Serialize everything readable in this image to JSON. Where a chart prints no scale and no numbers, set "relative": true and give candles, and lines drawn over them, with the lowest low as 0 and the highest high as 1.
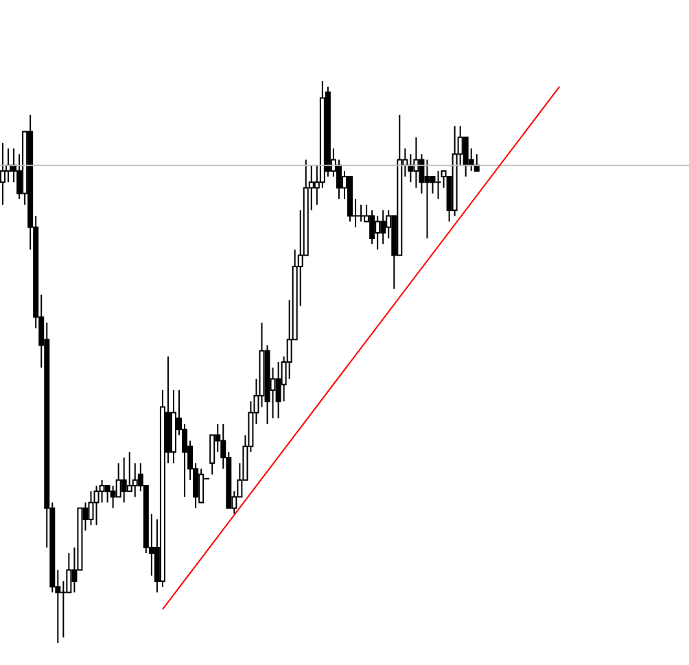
{
  "chart_data": {
    "type": "candlestick",
    "relative": true,
    "tick_labels": false,
    "categories": [
      null,
      null,
      null,
      null,
      null,
      null,
      null,
      null,
      null,
      null,
      null,
      null,
      null,
      null,
      null,
      null,
      null,
      null,
      null,
      null,
      null,
      null,
      null,
      null,
      null,
      null,
      null,
      null,
      null,
      null,
      null,
      null,
      null,
      null,
      null,
      null,
      null,
      null,
      null,
      null,
      null,
      null,
      null,
      null,
      null,
      null,
      null,
      null,
      null,
      null,
      null,
      null,
      null,
      null,
      null,
      null,
      null,
      null,
      null,
      null,
      null,
      null,
      null,
      null,
      null,
      null,
      null,
      null,
      null,
      null,
      null,
      null,
      null,
      null,
      null,
      null,
      null,
      null,
      null,
      null,
      null,
      null,
      null,
      null,
      null,
      null,
      null,
      null,
      null,
      null,
      null,
      null,
      null,
      null,
      null,
      null,
      null,
      null,
      null,
      null,
      null,
      null,
      null,
      null,
      null,
      null,
      null,
      null,
      null,
      null,
      null,
      null,
      null,
      null,
      null,
      null,
      null,
      null,
      null,
      null,
      null,
      null,
      null,
      null,
      null
    ],
    "series": [
      {
        "color": "#000000",
        "ohlc": [
          [
            0.82,
            0.89,
            0.78,
            0.84
          ],
          [
            0.84,
            0.88,
            0.82,
            0.85
          ],
          [
            0.85,
            0.88,
            0.82,
            0.84
          ],
          [
            0.84,
            0.87,
            0.79,
            0.8
          ],
          [
            0.8,
            0.91,
            0.78,
            0.91
          ],
          [
            0.91,
            0.94,
            0.7,
            0.74
          ],
          [
            0.74,
            0.76,
            0.56,
            0.58
          ],
          [
            0.58,
            0.62,
            0.49,
            0.53
          ],
          [
            0.54,
            0.57,
            0.17,
            0.24
          ],
          [
            0.24,
            0.25,
            0.09,
            0.1
          ],
          [
            0.1,
            0.13,
            0,
            0.09
          ],
          [
            0.09,
            0.11,
            0.01,
            0.09
          ],
          [
            0.09,
            0.16,
            0.09,
            0.13
          ],
          [
            0.13,
            0.17,
            0.09,
            0.11
          ],
          [
            0.13,
            0.24,
            0.13,
            0.24
          ],
          [
            0.24,
            0.25,
            0.2,
            0.22
          ],
          [
            0.22,
            0.27,
            0.21,
            0.25
          ],
          [
            0.25,
            0.28,
            0.21,
            0.27
          ],
          [
            0.27,
            0.29,
            0.25,
            0.28
          ],
          [
            0.28,
            0.28,
            0.25,
            0.27
          ],
          [
            0.27,
            0.28,
            0.24,
            0.26
          ],
          [
            0.26,
            0.32,
            0.26,
            0.29
          ],
          [
            0.29,
            0.33,
            0.25,
            0.27
          ],
          [
            0.27,
            0.34,
            0.27,
            0.28
          ],
          [
            0.28,
            0.32,
            0.26,
            0.29
          ],
          [
            0.3,
            0.32,
            0.27,
            0.28
          ],
          [
            0.28,
            0.28,
            0.16,
            0.17
          ],
          [
            0.17,
            0.23,
            0.12,
            0.16
          ],
          [
            0.17,
            0.22,
            0.09,
            0.11
          ],
          [
            0.11,
            0.45,
            0.1,
            0.42
          ],
          [
            0.41,
            0.51,
            0.32,
            0.34
          ],
          [
            0.34,
            0.45,
            0.32,
            0.41
          ],
          [
            0.4,
            0.45,
            0.37,
            0.38
          ],
          [
            0.38,
            0.39,
            0.26,
            0.34
          ],
          [
            0.35,
            0.36,
            0.29,
            0.31
          ],
          [
            0.31,
            0.32,
            0.24,
            0.26
          ],
          [
            0.25,
            0.31,
            0.25,
            0.3
          ],
          [
            0.29,
            0.29,
            0.29,
            0.29
          ],
          [
            0.32,
            0.37,
            0.3,
            0.37
          ],
          [
            0.37,
            0.39,
            0.34,
            0.36
          ],
          [
            0.36,
            0.39,
            0.31,
            0.33
          ],
          [
            0.33,
            0.34,
            0.24,
            0.24
          ],
          [
            0.24,
            0.27,
            0.23,
            0.26
          ],
          [
            0.26,
            0.32,
            0.26,
            0.29
          ],
          [
            0.29,
            0.37,
            0.29,
            0.35
          ],
          [
            0.35,
            0.43,
            0.34,
            0.41
          ],
          [
            0.41,
            0.47,
            0.39,
            0.44
          ],
          [
            0.44,
            0.57,
            0.42,
            0.52
          ],
          [
            0.52,
            0.53,
            0.39,
            0.43
          ],
          [
            0.45,
            0.49,
            0.4,
            0.47
          ],
          [
            0.47,
            0.5,
            0.4,
            0.43
          ],
          [
            0.46,
            0.51,
            0.43,
            0.5
          ],
          [
            0.5,
            0.61,
            0.47,
            0.54
          ],
          [
            0.54,
            0.7,
            0.54,
            0.67
          ],
          [
            0.67,
            0.77,
            0.6,
            0.69
          ],
          [
            0.69,
            0.86,
            0.69,
            0.81
          ],
          [
            0.81,
            0.85,
            0.77,
            0.82
          ],
          [
            0.81,
            0.85,
            0.78,
            0.82
          ],
          [
            0.82,
            1,
            0.81,
            0.97
          ],
          [
            0.98,
            0.99,
            0.83,
            0.84
          ],
          [
            0.84,
            0.88,
            0.83,
            0.86
          ],
          [
            0.85,
            0.86,
            0.79,
            0.81
          ],
          [
            0.81,
            0.84,
            0.79,
            0.83
          ],
          [
            0.83,
            0.83,
            0.75,
            0.76
          ],
          [
            0.76,
            0.79,
            0.74,
            0.76
          ],
          [
            0.76,
            0.78,
            0.75,
            0.76
          ],
          [
            0.75,
            0.78,
            0.75,
            0.76
          ],
          [
            0.76,
            0.77,
            0.71,
            0.72
          ],
          [
            0.73,
            0.76,
            0.7,
            0.75
          ],
          [
            0.75,
            0.77,
            0.71,
            0.73
          ],
          [
            0.74,
            0.77,
            0.72,
            0.76
          ],
          [
            0.76,
            0.76,
            0.63,
            0.69
          ],
          [
            0.69,
            0.94,
            0.69,
            0.86
          ],
          [
            0.85,
            0.88,
            0.83,
            0.86
          ],
          [
            0.85,
            0.87,
            0.82,
            0.84
          ],
          [
            0.84,
            0.9,
            0.81,
            0.86
          ],
          [
            0.86,
            0.87,
            0.8,
            0.82
          ],
          [
            0.83,
            0.86,
            0.72,
            0.82
          ],
          [
            0.83,
            0.83,
            0.8,
            0.82
          ],
          [
            0.82,
            0.84,
            0.79,
            0.82
          ],
          [
            0.83,
            0.84,
            0.81,
            0.84
          ],
          [
            0.83,
            0.83,
            0.75,
            0.77
          ],
          [
            0.77,
            0.92,
            0.76,
            0.87
          ],
          [
            0.87,
            0.92,
            0.85,
            0.9
          ],
          [
            0.9,
            0.9,
            0.83,
            0.85
          ],
          [
            0.86,
            0.88,
            0.84,
            0.85
          ],
          [
            0.85,
            0.87,
            0.84,
            0.84
          ],
          null,
          null,
          null,
          null,
          null,
          null,
          null,
          null,
          null,
          null,
          null,
          null,
          null,
          null,
          null,
          null,
          null,
          null,
          null,
          null,
          null,
          null,
          null,
          null,
          null,
          null,
          null,
          null,
          null,
          null,
          null,
          null,
          null,
          null,
          null,
          null,
          null,
          null
        ]
      },
      {
        "type": "line",
        "color": "#ff0000",
        "marker": "none",
        "line_style": "solid",
        "values": [
          null,
          null,
          null,
          null,
          null,
          null,
          null,
          null,
          null,
          null,
          null,
          null,
          null,
          null,
          null,
          null,
          null,
          null,
          null,
          null,
          null,
          null,
          null,
          null,
          null,
          null,
          null,
          null,
          null,
          0.06,
          null,
          null,
          null,
          null,
          null,
          null,
          null,
          null,
          null,
          null,
          null,
          null,
          null,
          null,
          null,
          null,
          null,
          null,
          null,
          null,
          null,
          null,
          null,
          null,
          null,
          null,
          null,
          null,
          null,
          null,
          null,
          null,
          null,
          null,
          null,
          null,
          null,
          null,
          null,
          null,
          null,
          null,
          null,
          null,
          null,
          null,
          null,
          null,
          null,
          null,
          null,
          null,
          null,
          null,
          null,
          null,
          null,
          null,
          null,
          null,
          null,
          null,
          null,
          null,
          null,
          null,
          null,
          null,
          null,
          null,
          null,
          0.99,
          null,
          null,
          null,
          null,
          null,
          null,
          null,
          null,
          null,
          null,
          null,
          null,
          null,
          null,
          null,
          null,
          null,
          null,
          null,
          null,
          null,
          null,
          null
        ]
      }
    ],
    "ref_lines": [
      {
        "axis": "y",
        "value": 0.85,
        "color": "#c0c0c0"
      }
    ]
  }
}
